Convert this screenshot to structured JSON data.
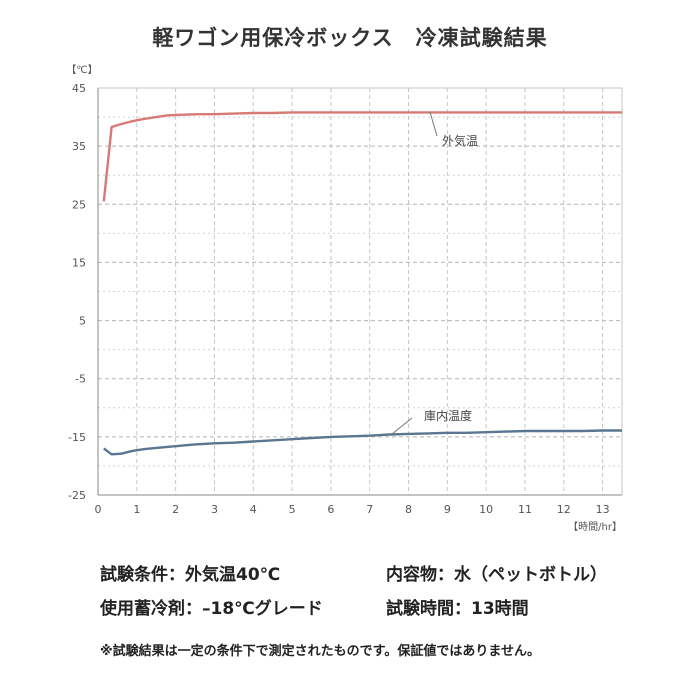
{
  "chart_data": {
    "type": "line",
    "title": "軽ワゴン用保冷ボックス　冷凍試験結果",
    "ylabel": "【℃】",
    "xlabel": "【時間/hr】",
    "xlim": [
      0,
      13.5
    ],
    "ylim": [
      -25,
      45
    ],
    "xticks": [
      "0",
      "1",
      "2",
      "3",
      "4",
      "5",
      "6",
      "7",
      "8",
      "9",
      "10",
      "11",
      "12",
      "13"
    ],
    "yticks": [
      "45",
      "35",
      "25",
      "15",
      "5",
      "-5",
      "-15",
      "-25"
    ],
    "grid": true,
    "series": [
      {
        "name": "外気温",
        "color": "#d77a75",
        "x": [
          0.15,
          0.35,
          0.6,
          0.9,
          1.2,
          1.5,
          1.8,
          2.2,
          2.6,
          3.0,
          3.5,
          4.0,
          4.5,
          5.0,
          6.0,
          7.0,
          8.0,
          9.0,
          10.0,
          11.0,
          12.0,
          13.0,
          13.5
        ],
        "y": [
          25.5,
          38.3,
          38.8,
          39.3,
          39.7,
          40.0,
          40.3,
          40.4,
          40.5,
          40.5,
          40.6,
          40.7,
          40.7,
          40.8,
          40.8,
          40.8,
          40.8,
          40.8,
          40.8,
          40.8,
          40.8,
          40.8,
          40.8
        ]
      },
      {
        "name": "庫内温度",
        "color": "#5a7690",
        "x": [
          0.15,
          0.35,
          0.6,
          0.9,
          1.2,
          1.5,
          2.0,
          2.5,
          3.0,
          3.5,
          4.0,
          4.5,
          5.0,
          5.5,
          6.0,
          6.5,
          7.0,
          7.5,
          8.0,
          8.5,
          9.0,
          9.5,
          10.0,
          10.5,
          11.0,
          11.5,
          12.0,
          12.5,
          13.0,
          13.5
        ],
        "y": [
          -17.0,
          -18.0,
          -17.9,
          -17.4,
          -17.1,
          -16.9,
          -16.6,
          -16.3,
          -16.1,
          -16.0,
          -15.8,
          -15.6,
          -15.4,
          -15.2,
          -15.0,
          -14.9,
          -14.8,
          -14.6,
          -14.5,
          -14.4,
          -14.3,
          -14.3,
          -14.2,
          -14.1,
          -14.0,
          -14.0,
          -14.0,
          -14.0,
          -13.9,
          -13.9
        ]
      }
    ]
  },
  "conditions": {
    "test_condition": "試験条件：外気温40℃",
    "contents": "内容物：水（ペットボトル）",
    "refrigerant": "使用蓄冷剤：–18℃グレード",
    "test_time": "試験時間：13時間"
  },
  "note": "※試験結果は一定の条件下で測定されたものです。保証値ではありません。"
}
